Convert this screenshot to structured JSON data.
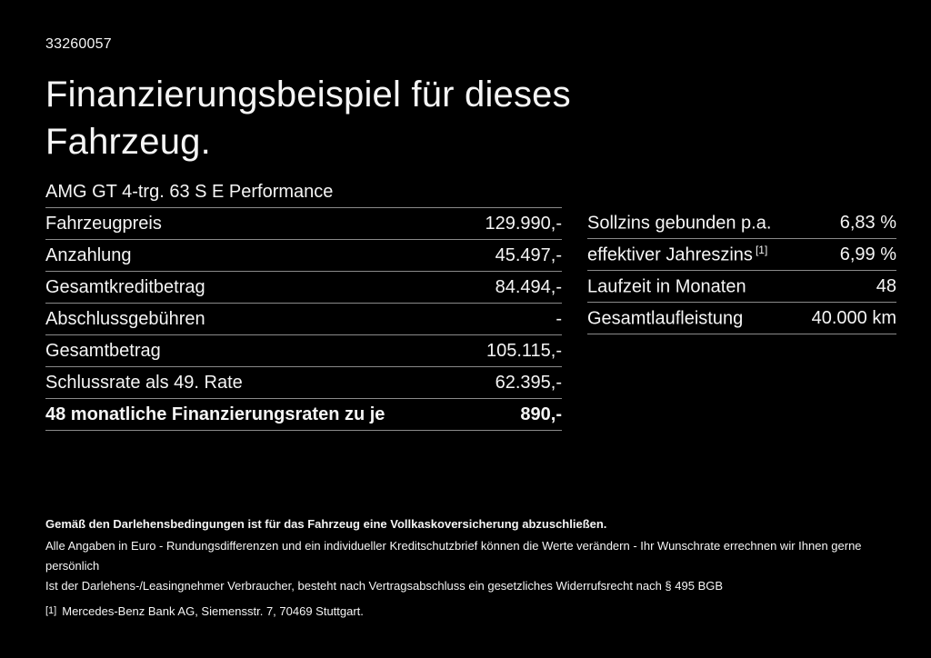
{
  "page": {
    "background": "#000000",
    "text_color": "#f5f5f5",
    "divider_color": "#8a8a8a"
  },
  "header": {
    "listing_id": "33260057",
    "title_line1": "Finanzierungsbeispiel für dieses",
    "title_line2": "Fahrzeug.",
    "vehicle_name": "AMG GT 4-trg. 63 S E Performance"
  },
  "financing_table": {
    "rows": [
      {
        "label": "Fahrzeugpreis",
        "value": "129.990,-",
        "bold": false
      },
      {
        "label": "Anzahlung",
        "value": "45.497,-",
        "bold": false
      },
      {
        "label": "Gesamtkreditbetrag",
        "value": "84.494,-",
        "bold": false
      },
      {
        "label": "Abschlussgebühren",
        "value": "-",
        "bold": false
      },
      {
        "label": "Gesamtbetrag",
        "value": "105.115,-",
        "bold": false
      },
      {
        "label": "Schlussrate als 49. Rate",
        "value": "62.395,-",
        "bold": false
      },
      {
        "label": "48 monatliche Finanzierungsraten zu je",
        "value": "890,-",
        "bold": true
      }
    ]
  },
  "conditions_table": {
    "rows": [
      {
        "label": "Sollzins gebunden p.a.",
        "sup": "",
        "value": "6,83 %"
      },
      {
        "label": "effektiver Jahreszins",
        "sup": "[1]",
        "value": "6,99 %"
      },
      {
        "label": "Laufzeit in Monaten",
        "sup": "",
        "value": "48"
      },
      {
        "label": "Gesamtlaufleistung",
        "sup": "",
        "value": "40.000 km"
      }
    ]
  },
  "footer": {
    "insurance_note": "Gemäß den Darlehensbedingungen ist für das Fahrzeug eine Vollkaskoversicherung abzuschließen.",
    "disclaimer_line1": "Alle Angaben in Euro - Rundungsdifferenzen und ein individueller Kreditschutzbrief können die Werte verändern - Ihr Wunschrate errechnen wir Ihnen gerne persönlich",
    "disclaimer_line2": "Ist der Darlehens-/Leasingnehmer Verbraucher, besteht nach Vertragsabschluss ein gesetzliches Widerrufsrecht nach § 495 BGB",
    "footnote_marker": "[1]",
    "footnote_text": "Mercedes-Benz Bank AG, Siemensstr. 7, 70469 Stuttgart."
  }
}
